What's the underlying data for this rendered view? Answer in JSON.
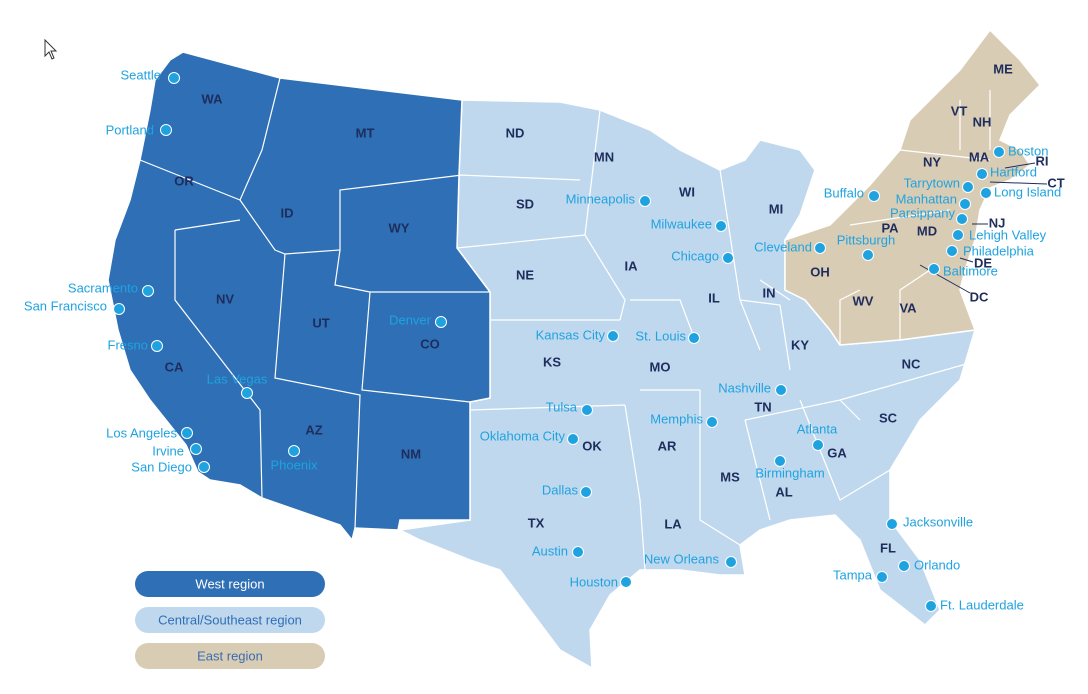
{
  "legend": [
    "West region",
    "Central/Southeast region",
    "East region"
  ],
  "states": {
    "west": [
      "WA",
      "OR",
      "CA",
      "ID",
      "NV",
      "MT",
      "WY",
      "UT",
      "AZ",
      "CO",
      "NM"
    ],
    "central": [
      "ND",
      "SD",
      "NE",
      "KS",
      "OK",
      "TX",
      "MN",
      "IA",
      "MO",
      "AR",
      "LA",
      "WI",
      "IL",
      "MI",
      "IN",
      "KY",
      "TN",
      "MS",
      "AL",
      "GA",
      "FL",
      "SC",
      "NC"
    ],
    "east": [
      "ME",
      "VT",
      "NH",
      "MA",
      "NY",
      "PA",
      "OH",
      "WV",
      "VA",
      "MD",
      "NJ",
      "RI",
      "CT",
      "DE",
      "DC"
    ]
  },
  "cities": [
    "Seattle",
    "Portland",
    "Sacramento",
    "San Francisco",
    "Fresno",
    "Las Vegas",
    "Los Angeles",
    "Irvine",
    "San Diego",
    "Phoenix",
    "Denver",
    "Minneapolis",
    "Milwaukee",
    "Chicago",
    "Kansas City",
    "St. Louis",
    "Cleveland",
    "Pittsburgh",
    "Buffalo",
    "Tarrytown",
    "Manhattan",
    "Parsippany",
    "Lehigh Valley",
    "Philadelphia",
    "Baltimore",
    "Boston",
    "Hartford",
    "Long Island",
    "Nashville",
    "Memphis",
    "Tulsa",
    "Oklahoma City",
    "Dallas",
    "Austin",
    "Houston",
    "New Orleans",
    "Atlanta",
    "Birmingham",
    "Jacksonville",
    "Orlando",
    "Tampa",
    "Ft. Lauderdale"
  ]
}
